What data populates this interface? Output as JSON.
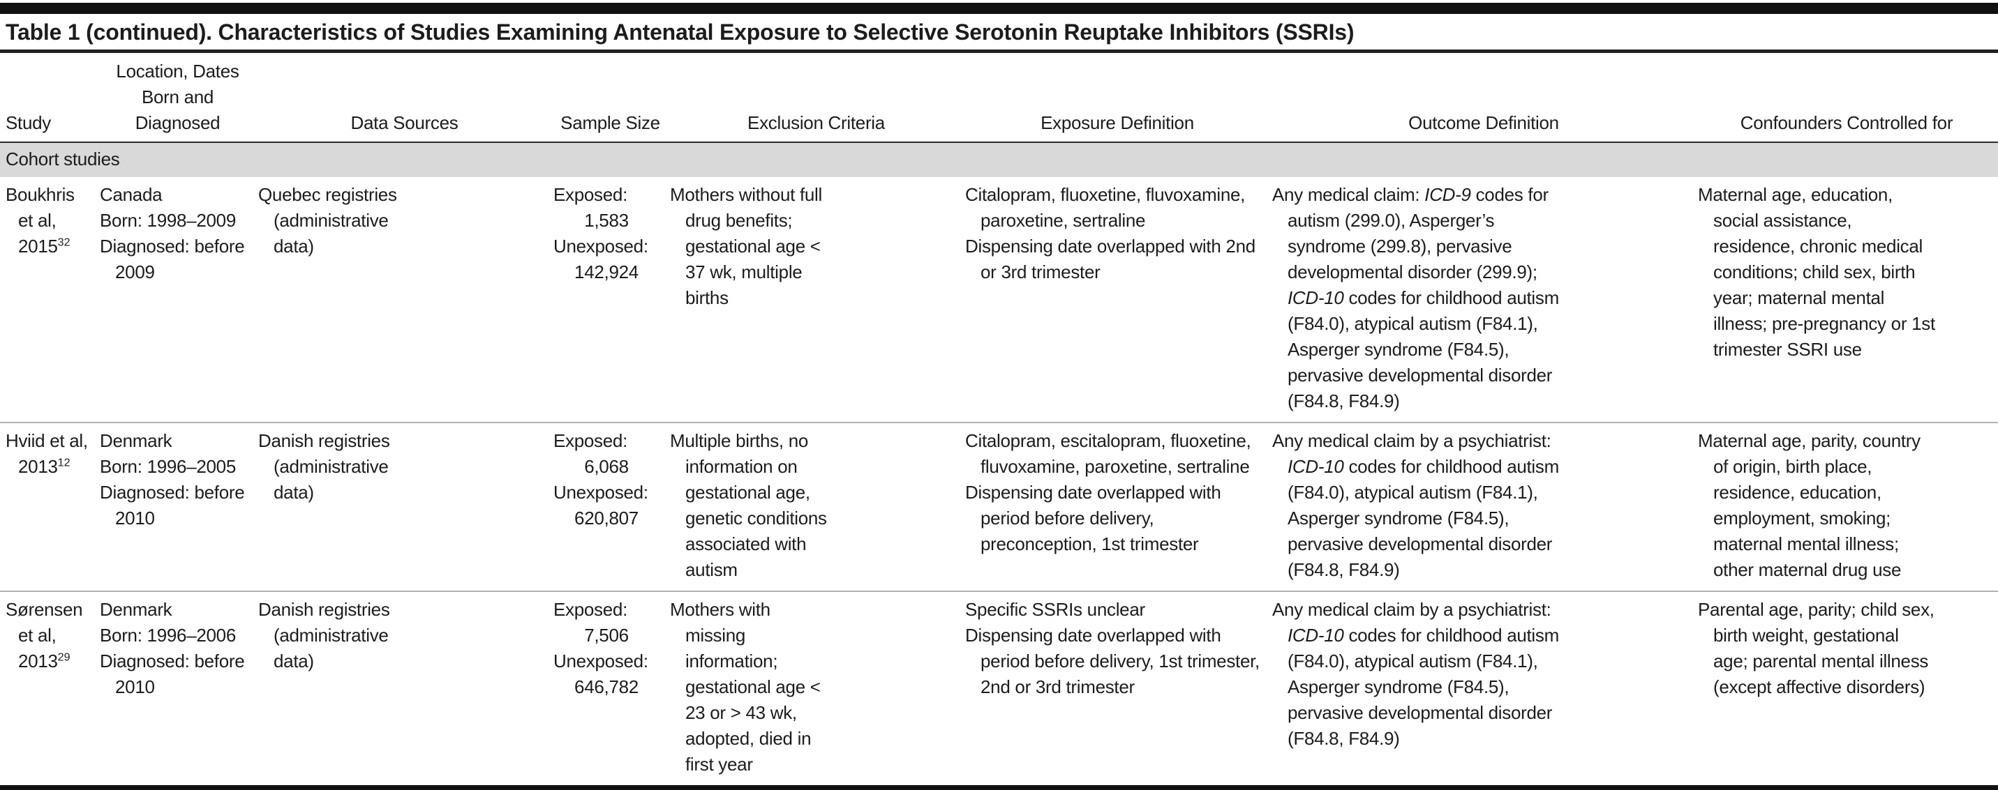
{
  "title": "Table 1 (continued). Characteristics of Studies Examining Antenatal Exposure to Selective Serotonin Reuptake Inhibitors (SSRIs)",
  "columns": [
    "Study",
    "Location, Dates\nBorn and\nDiagnosed",
    "Data Sources",
    "Sample Size",
    "Exclusion Criteria",
    "Exposure Definition",
    "Outcome Definition",
    "Confounders Controlled for"
  ],
  "section_label": "Cohort studies",
  "colors": {
    "section_band": "#d9d9d9",
    "rule_dark": "#111111",
    "rule_light": "#b3b3b3",
    "text": "#1c1c1c"
  },
  "rows": [
    {
      "cells": [
        [
          "Boukhris et al, 2015^32^"
        ],
        [
          "Canada",
          "Born: 1998–2009",
          "Diagnosed: before 2009"
        ],
        [
          "Quebec registries (administrative data)"
        ],
        [
          "Exposed:",
          "1,583",
          "Unexposed:",
          "142,924"
        ],
        [
          "Mothers without full drug benefits; gestational age < 37 wk, multiple births"
        ],
        [
          "Citalopram, fluoxetine, fluvoxamine, paroxetine, sertraline",
          "Dispensing date overlapped with 2nd or 3rd trimester"
        ],
        [
          "Any medical claim: _ICD-9_ codes for autism (299.0), Asperger’s syndrome (299.8), pervasive developmental disorder (299.9); _ICD-10_ codes for childhood autism (F84.0), atypical autism (F84.1), Asperger syndrome (F84.5), pervasive developmental disorder (F84.8, F84.9)"
        ],
        [
          "Maternal age, education, social assistance, residence, chronic medical conditions; child sex, birth year; maternal mental illness; pre-pregnancy or 1st trimester SSRI use"
        ]
      ]
    },
    {
      "cells": [
        [
          "Hviid et al, 2013^12^"
        ],
        [
          "Denmark",
          "Born: 1996–2005",
          "Diagnosed: before 2010"
        ],
        [
          "Danish registries (administrative data)"
        ],
        [
          "Exposed:",
          "6,068",
          "Unexposed:",
          "620,807"
        ],
        [
          "Multiple births, no information on gestational age, genetic conditions associated with autism"
        ],
        [
          "Citalopram, escitalopram, fluoxetine, fluvoxamine, paroxetine, sertraline",
          "Dispensing date overlapped with period before delivery, preconception, 1st trimester"
        ],
        [
          "Any medical claim by a psychiatrist: _ICD-10_ codes for childhood autism (F84.0), atypical autism (F84.1), Asperger syndrome (F84.5), pervasive developmental disorder (F84.8, F84.9)"
        ],
        [
          "Maternal age, parity, country of origin, birth place, residence, education, employment, smoking; maternal mental illness; other maternal drug use"
        ]
      ]
    },
    {
      "cells": [
        [
          "Sørensen et al, 2013^29^"
        ],
        [
          "Denmark",
          "Born: 1996–2006",
          "Diagnosed: before 2010"
        ],
        [
          "Danish registries (administrative data)"
        ],
        [
          "Exposed:",
          "7,506",
          "Unexposed:",
          "646,782"
        ],
        [
          "Mothers with missing information; gestational age < 23 or > 43 wk, adopted, died in first year"
        ],
        [
          "Specific SSRIs unclear",
          "Dispensing date overlapped with period before delivery, 1st trimester, 2nd or 3rd trimester"
        ],
        [
          "Any medical claim by a psychiatrist: _ICD-10_ codes for childhood autism (F84.0), atypical autism (F84.1), Asperger syndrome (F84.5), pervasive developmental disorder (F84.8, F84.9)"
        ],
        [
          "Parental age, parity; child sex, birth weight, gestational age; parental mental illness (except affective disorders)"
        ]
      ]
    }
  ]
}
